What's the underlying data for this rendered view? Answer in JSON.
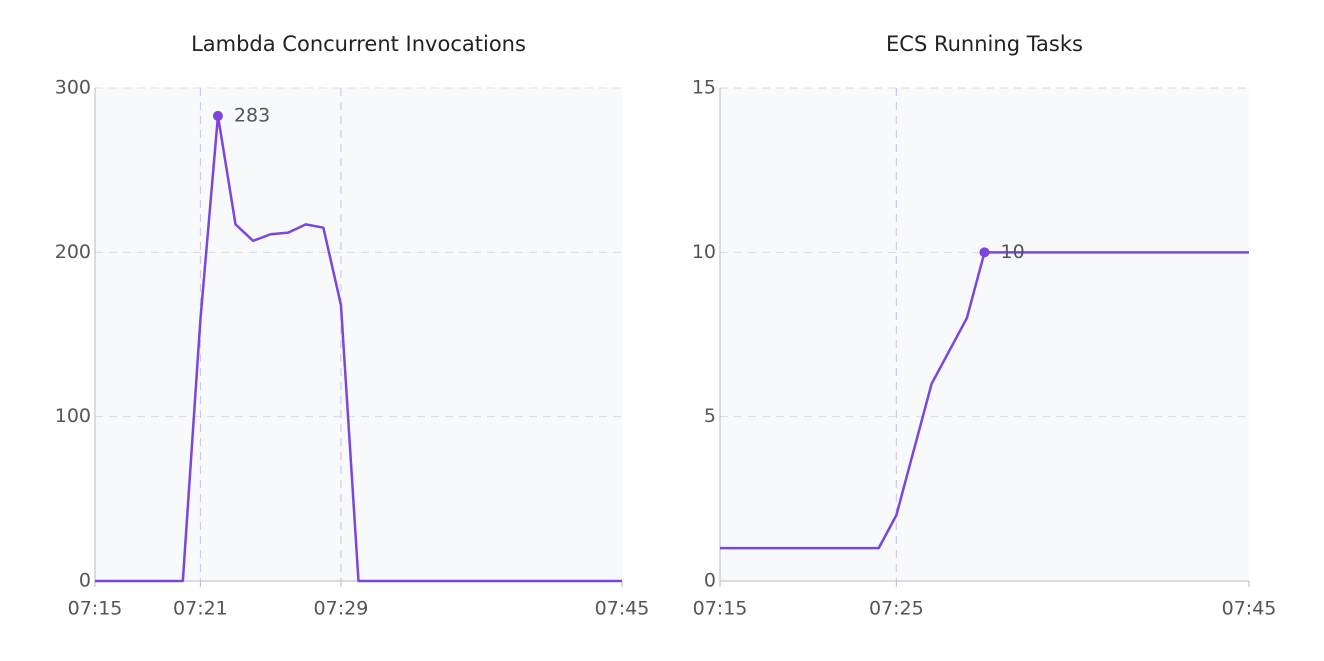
{
  "chart_data": [
    {
      "type": "line",
      "title": "Lambda Concurrent Invocations",
      "x": [
        "07:15",
        "07:20",
        "07:21",
        "07:22",
        "07:23",
        "07:24",
        "07:25",
        "07:26",
        "07:27",
        "07:28",
        "07:29",
        "07:30",
        "07:45"
      ],
      "series": [
        {
          "name": "Lambda Concurrent Invocations",
          "color": "#7b45e0",
          "values": [
            0,
            0,
            159,
            283,
            217,
            207,
            211,
            212,
            217,
            215,
            168,
            0,
            0
          ]
        }
      ],
      "xlim": [
        "07:15",
        "07:45"
      ],
      "xticks": [
        "07:15",
        "07:21",
        "07:29",
        "07:45"
      ],
      "ylim": [
        0,
        300
      ],
      "yticks": [
        0,
        100,
        200,
        300
      ],
      "grid": true,
      "annotations": [
        {
          "x": "07:22",
          "y": 283
        }
      ]
    },
    {
      "type": "line",
      "title": "ECS Running Tasks",
      "x": [
        "07:15",
        "07:24",
        "07:25",
        "07:27",
        "07:29",
        "07:30",
        "07:45"
      ],
      "series": [
        {
          "name": "ECS Running Tasks",
          "color": "#7b45e0",
          "values": [
            1,
            1,
            2,
            6,
            8,
            10,
            10
          ]
        }
      ],
      "xlim": [
        "07:15",
        "07:45"
      ],
      "xticks": [
        "07:15",
        "07:25",
        "07:45"
      ],
      "ylim": [
        0,
        15
      ],
      "yticks": [
        0,
        5,
        10,
        15
      ],
      "grid": true,
      "annotations": [
        {
          "x": "07:30",
          "y": 10
        }
      ]
    }
  ]
}
